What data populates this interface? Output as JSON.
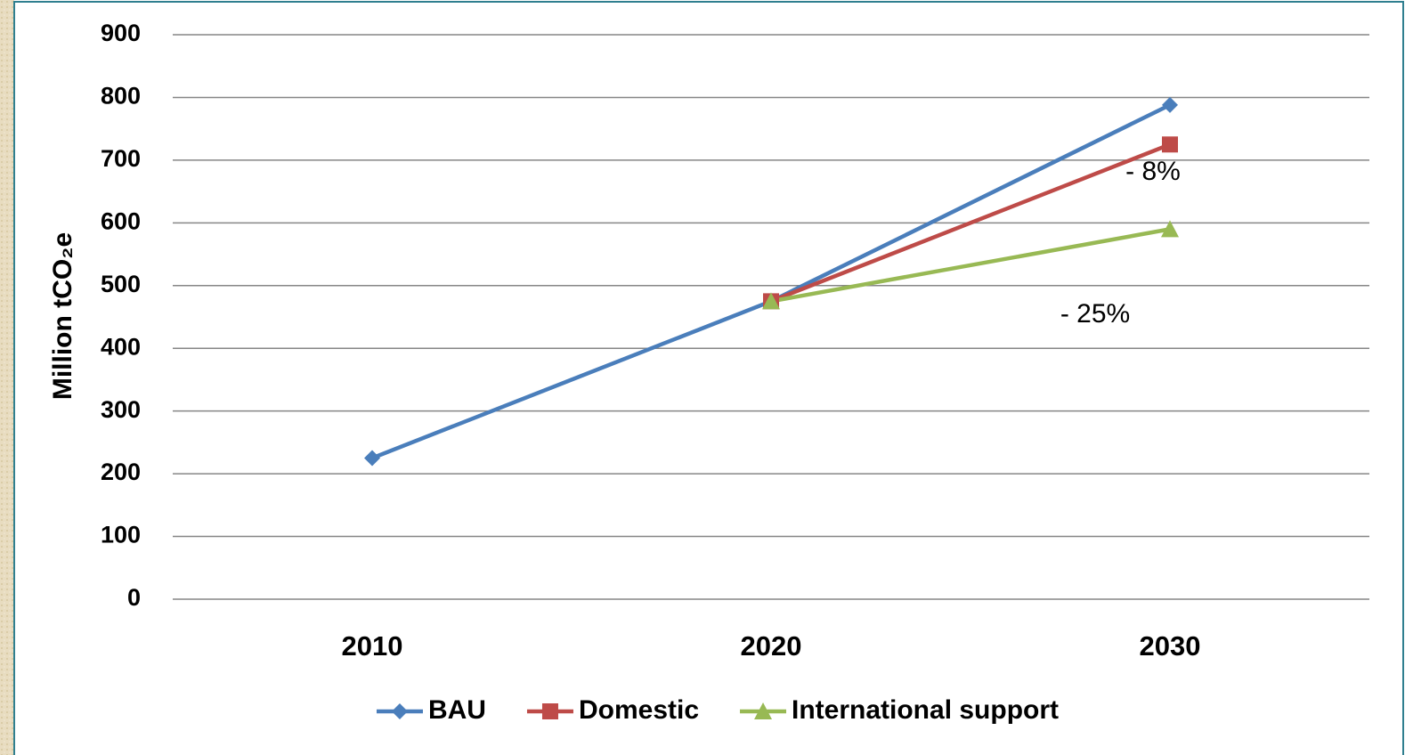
{
  "chart_data": {
    "type": "line",
    "y_label": "Million tCO₂e",
    "categories": [
      "2010",
      "2020",
      "2030"
    ],
    "series": [
      {
        "name": "BAU",
        "color": "#4a7ebb",
        "marker": "diamond",
        "values": [
          225,
          475,
          788
        ]
      },
      {
        "name": "Domestic",
        "color": "#be4b48",
        "marker": "square",
        "values": [
          null,
          475,
          725
        ]
      },
      {
        "name": "International support",
        "color": "#98b954",
        "marker": "triangle",
        "values": [
          null,
          475,
          590
        ]
      }
    ],
    "annotations": [
      "- 8%",
      "- 25%"
    ],
    "ylim": [
      0,
      900
    ],
    "yticks": [
      0,
      100,
      200,
      300,
      400,
      500,
      600,
      700,
      800,
      900
    ],
    "grid": true,
    "legend": "bottom"
  }
}
